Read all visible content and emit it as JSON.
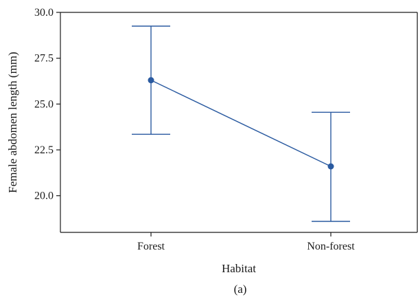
{
  "chart_data": {
    "type": "line",
    "categories": [
      "Forest",
      "Non-forest"
    ],
    "series": [
      {
        "values": [
          26.3,
          21.6
        ],
        "error_low": [
          23.35,
          18.6
        ],
        "error_high": [
          29.25,
          24.55
        ]
      }
    ],
    "xlabel": "Habitat",
    "ylabel": "Female abdomen length (mm)",
    "yticks": [
      "20.0",
      "22.5",
      "25.0",
      "27.5",
      "30.0"
    ],
    "ylim": [
      18.0,
      30.0
    ],
    "grid": false,
    "caption": "(a)",
    "colors": {
      "series": "#2a5aa0",
      "axis": "#1a1a1a"
    }
  }
}
